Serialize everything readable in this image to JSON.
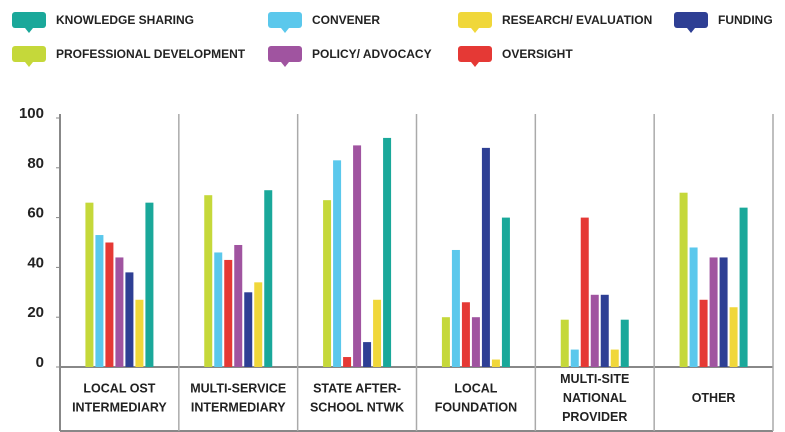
{
  "chart_data": {
    "type": "bar",
    "categories": [
      "LOCAL OST\nINTERMEDIARY",
      "MULTI-SERVICE\nINTERMEDIARY",
      "STATE AFTER-\nSCHOOL NTWK",
      "LOCAL\nFOUNDATION",
      "MULTI-SITE\nNATIONAL\nPROVIDER",
      "OTHER"
    ],
    "series": [
      {
        "name": "PROFESSIONAL DEVELOPMENT",
        "color": "#c5d83a",
        "values": [
          66,
          69,
          67,
          20,
          19,
          70
        ]
      },
      {
        "name": "CONVENER",
        "color": "#5bc8ec",
        "values": [
          53,
          46,
          83,
          47,
          7,
          48
        ]
      },
      {
        "name": "OVERSIGHT",
        "color": "#e53935",
        "values": [
          50,
          43,
          4,
          26,
          60,
          27
        ]
      },
      {
        "name": "POLICY/ ADVOCACY",
        "color": "#a054a0",
        "values": [
          44,
          49,
          89,
          20,
          29,
          44
        ]
      },
      {
        "name": "FUNDING",
        "color": "#2e3f94",
        "values": [
          38,
          30,
          10,
          88,
          29,
          44
        ]
      },
      {
        "name": "RESEARCH/ EVALUATION",
        "color": "#f0d73a",
        "values": [
          27,
          34,
          27,
          3,
          7,
          24
        ]
      },
      {
        "name": "KNOWLEDGE SHARING",
        "color": "#1aa89a",
        "values": [
          66,
          71,
          92,
          60,
          19,
          64
        ]
      }
    ],
    "ylim": [
      0,
      100
    ],
    "yticks": [
      0,
      20,
      40,
      60,
      80,
      100
    ]
  }
}
